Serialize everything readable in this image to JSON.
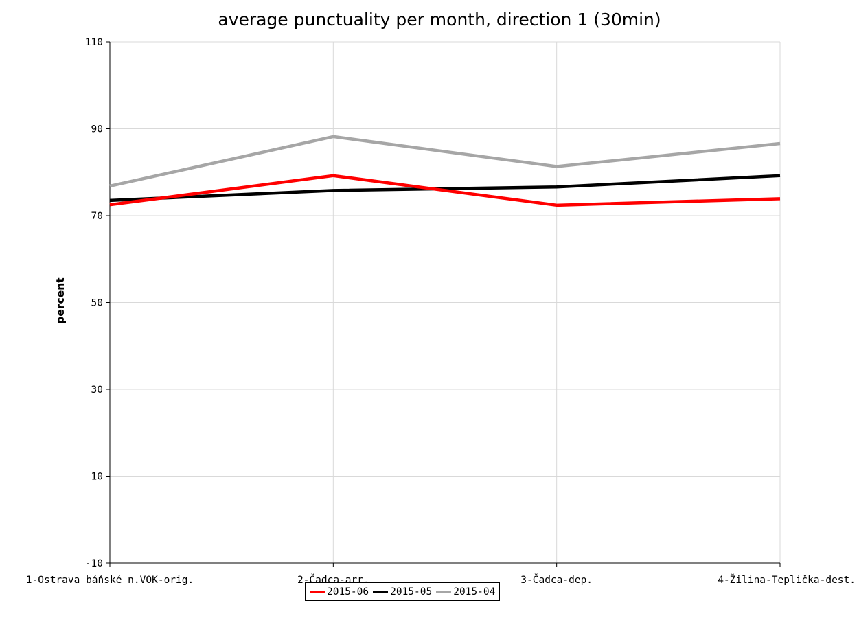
{
  "chart_data": {
    "type": "line",
    "title": "average punctuality per month, direction 1 (30min)",
    "xlabel": "",
    "ylabel": "percent",
    "categories": [
      "1-Ostrava báňské n.VOK-orig.",
      "2-Čadca-arr.",
      "3-Čadca-dep.",
      "4-Žilina-Teplička-dest."
    ],
    "ylim": [
      -10,
      110
    ],
    "yticks": [
      "110",
      "90",
      "70",
      "50",
      "30",
      "10",
      "-10"
    ],
    "grid": true,
    "legend_position": "bottom",
    "series": [
      {
        "name": "2015-06",
        "color": "#ff0000",
        "values": [
          72.5,
          79.2,
          72.4,
          73.9
        ]
      },
      {
        "name": "2015-05",
        "color": "#000000",
        "values": [
          73.5,
          75.8,
          76.6,
          79.2
        ]
      },
      {
        "name": "2015-04",
        "color": "#a6a6a6",
        "values": [
          76.8,
          88.2,
          81.3,
          86.6
        ]
      }
    ]
  }
}
